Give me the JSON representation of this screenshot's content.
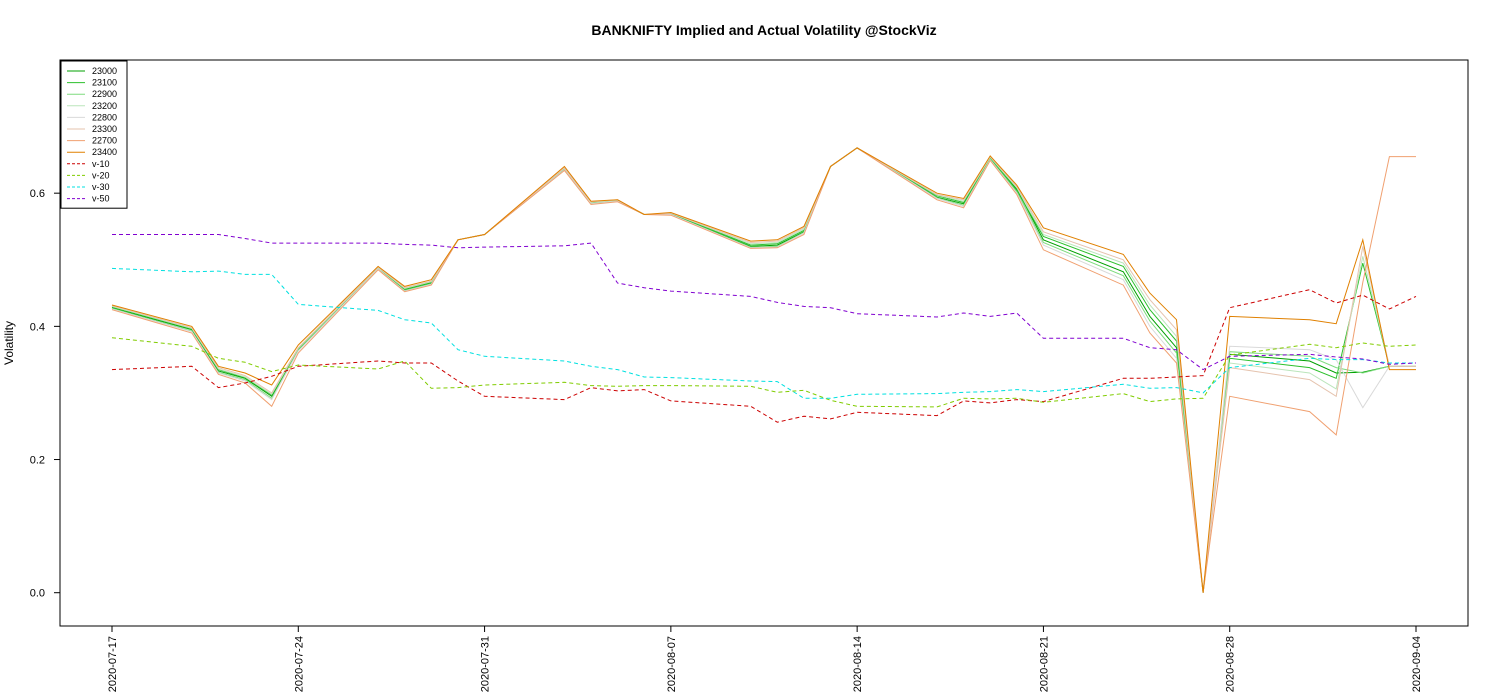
{
  "chart_data": {
    "type": "line",
    "title": "BANKNIFTY Implied and Actual Volatility @StockViz",
    "xlabel": "",
    "ylabel": "Volatility",
    "ylim": [
      -0.05,
      0.8
    ],
    "yticks": [
      0.0,
      0.2,
      0.4,
      0.6
    ],
    "ytick_labels": [
      "0.0",
      "0.2",
      "0.4",
      "0.6"
    ],
    "xticks": [
      "2020-07-17",
      "2020-07-24",
      "2020-07-31",
      "2020-08-07",
      "2020-08-14",
      "2020-08-21",
      "2020-08-28",
      "2020-09-04"
    ],
    "x": [
      "2020-07-17",
      "2020-07-20",
      "2020-07-21",
      "2020-07-22",
      "2020-07-23",
      "2020-07-24",
      "2020-07-27",
      "2020-07-28",
      "2020-07-29",
      "2020-07-30",
      "2020-07-31",
      "2020-08-03",
      "2020-08-04",
      "2020-08-05",
      "2020-08-06",
      "2020-08-07",
      "2020-08-10",
      "2020-08-11",
      "2020-08-12",
      "2020-08-13",
      "2020-08-14",
      "2020-08-17",
      "2020-08-18",
      "2020-08-19",
      "2020-08-20",
      "2020-08-21",
      "2020-08-24",
      "2020-08-25",
      "2020-08-26",
      "2020-08-27",
      "2020-08-28",
      "2020-08-31",
      "2020-09-01",
      "2020-09-02",
      "2020-09-03",
      "2020-09-04"
    ],
    "grid": false,
    "legend_position": "top-left",
    "series": [
      {
        "name": "23000",
        "color": "#00a000",
        "dash": "",
        "values": [
          0.428,
          0.395,
          0.333,
          0.322,
          0.295,
          0.365,
          0.487,
          0.455,
          0.465,
          0.53,
          0.538,
          0.636,
          0.585,
          0.588,
          0.568,
          0.568,
          0.52,
          0.522,
          0.542,
          0.64,
          0.668,
          0.594,
          0.584,
          0.652,
          0.606,
          0.53,
          0.482,
          0.415,
          0.368,
          0.0,
          0.358,
          0.348,
          0.33,
          0.331,
          0.34,
          0.34
        ]
      },
      {
        "name": "23100",
        "color": "#2cc02c",
        "dash": "",
        "values": [
          0.429,
          0.396,
          0.335,
          0.323,
          0.297,
          0.366,
          0.488,
          0.456,
          0.466,
          0.53,
          0.538,
          0.637,
          0.586,
          0.589,
          0.568,
          0.569,
          0.522,
          0.524,
          0.544,
          0.64,
          0.668,
          0.596,
          0.586,
          0.653,
          0.604,
          0.535,
          0.49,
          0.425,
          0.378,
          0.0,
          0.352,
          0.338,
          0.322,
          0.495,
          0.34,
          0.34
        ]
      },
      {
        "name": "22900",
        "color": "#7fdc7f",
        "dash": "",
        "values": [
          0.427,
          0.393,
          0.331,
          0.32,
          0.292,
          0.364,
          0.486,
          0.454,
          0.464,
          0.53,
          0.538,
          0.635,
          0.584,
          0.588,
          0.568,
          0.568,
          0.519,
          0.52,
          0.541,
          0.64,
          0.668,
          0.593,
          0.582,
          0.651,
          0.602,
          0.526,
          0.476,
          0.408,
          0.36,
          0.0,
          0.362,
          0.355,
          0.338,
          0.33,
          0.34,
          0.34
        ]
      },
      {
        "name": "23200",
        "color": "#bbe5bb",
        "dash": "",
        "values": [
          0.43,
          0.397,
          0.336,
          0.324,
          0.298,
          0.367,
          0.488,
          0.457,
          0.467,
          0.53,
          0.538,
          0.637,
          0.586,
          0.589,
          0.568,
          0.57,
          0.524,
          0.526,
          0.546,
          0.64,
          0.668,
          0.597,
          0.588,
          0.654,
          0.608,
          0.538,
          0.495,
          0.432,
          0.385,
          0.0,
          0.345,
          0.33,
          0.306,
          0.505,
          0.34,
          0.34
        ]
      },
      {
        "name": "22800",
        "color": "#d9d9d9",
        "dash": "",
        "values": [
          0.426,
          0.392,
          0.33,
          0.318,
          0.29,
          0.363,
          0.486,
          0.453,
          0.463,
          0.53,
          0.538,
          0.635,
          0.584,
          0.588,
          0.568,
          0.568,
          0.518,
          0.519,
          0.54,
          0.64,
          0.668,
          0.592,
          0.58,
          0.65,
          0.6,
          0.522,
          0.47,
          0.4,
          0.352,
          0.0,
          0.37,
          0.365,
          0.35,
          0.278,
          0.34,
          0.34
        ]
      },
      {
        "name": "23300",
        "color": "#e5c3ae",
        "dash": "",
        "values": [
          0.431,
          0.398,
          0.338,
          0.326,
          0.3,
          0.368,
          0.489,
          0.458,
          0.468,
          0.53,
          0.538,
          0.638,
          0.587,
          0.59,
          0.568,
          0.57,
          0.526,
          0.528,
          0.548,
          0.64,
          0.668,
          0.598,
          0.59,
          0.655,
          0.61,
          0.542,
          0.5,
          0.44,
          0.395,
          0.0,
          0.338,
          0.32,
          0.295,
          0.52,
          0.34,
          0.34
        ]
      },
      {
        "name": "22700",
        "color": "#f0a070",
        "dash": "",
        "values": [
          0.425,
          0.39,
          0.328,
          0.315,
          0.28,
          0.36,
          0.485,
          0.452,
          0.462,
          0.53,
          0.538,
          0.634,
          0.583,
          0.587,
          0.568,
          0.567,
          0.517,
          0.518,
          0.538,
          0.64,
          0.668,
          0.59,
          0.578,
          0.649,
          0.598,
          0.515,
          0.462,
          0.39,
          0.345,
          0.0,
          0.295,
          0.272,
          0.237,
          0.466,
          0.655,
          0.655
        ]
      },
      {
        "name": "23400",
        "color": "#e08000",
        "dash": "",
        "values": [
          0.432,
          0.4,
          0.34,
          0.33,
          0.312,
          0.372,
          0.49,
          0.46,
          0.47,
          0.53,
          0.538,
          0.64,
          0.588,
          0.59,
          0.568,
          0.571,
          0.528,
          0.53,
          0.55,
          0.64,
          0.668,
          0.6,
          0.592,
          0.656,
          0.612,
          0.548,
          0.508,
          0.45,
          0.41,
          0.0,
          0.415,
          0.41,
          0.404,
          0.53,
          0.335,
          0.335
        ]
      },
      {
        "name": "v-10",
        "color": "#cc0000",
        "dash": "4,3",
        "values": [
          0.335,
          0.34,
          0.308,
          0.315,
          0.325,
          0.34,
          0.348,
          0.345,
          0.345,
          0.318,
          0.295,
          0.29,
          0.308,
          0.303,
          0.305,
          0.288,
          0.28,
          0.256,
          0.265,
          0.261,
          0.271,
          0.266,
          0.288,
          0.285,
          0.29,
          0.287,
          0.322,
          0.322,
          0.324,
          0.326,
          0.428,
          0.455,
          0.435,
          0.447,
          0.426,
          0.445
        ]
      },
      {
        "name": "v-20",
        "color": "#80cc00",
        "dash": "4,3",
        "values": [
          0.383,
          0.37,
          0.352,
          0.346,
          0.332,
          0.342,
          0.336,
          0.348,
          0.307,
          0.308,
          0.312,
          0.316,
          0.311,
          0.31,
          0.311,
          0.311,
          0.31,
          0.301,
          0.304,
          0.289,
          0.28,
          0.279,
          0.292,
          0.291,
          0.292,
          0.286,
          0.299,
          0.287,
          0.291,
          0.292,
          0.357,
          0.373,
          0.368,
          0.375,
          0.37,
          0.372
        ]
      },
      {
        "name": "v-30",
        "color": "#00e0e0",
        "dash": "4,3",
        "values": [
          0.487,
          0.482,
          0.483,
          0.478,
          0.478,
          0.433,
          0.424,
          0.41,
          0.405,
          0.365,
          0.355,
          0.348,
          0.34,
          0.335,
          0.324,
          0.323,
          0.318,
          0.317,
          0.292,
          0.292,
          0.298,
          0.299,
          0.301,
          0.302,
          0.305,
          0.302,
          0.313,
          0.307,
          0.308,
          0.3,
          0.338,
          0.352,
          0.35,
          0.35,
          0.345,
          0.345
        ]
      },
      {
        "name": "v-50",
        "color": "#8000d0",
        "dash": "4,3",
        "values": [
          0.538,
          0.538,
          0.538,
          0.532,
          0.525,
          0.525,
          0.525,
          0.523,
          0.522,
          0.518,
          0.519,
          0.521,
          0.525,
          0.465,
          0.458,
          0.453,
          0.445,
          0.436,
          0.43,
          0.428,
          0.419,
          0.414,
          0.42,
          0.415,
          0.42,
          0.382,
          0.382,
          0.368,
          0.365,
          0.335,
          0.355,
          0.358,
          0.354,
          0.351,
          0.343,
          0.345
        ]
      }
    ]
  }
}
